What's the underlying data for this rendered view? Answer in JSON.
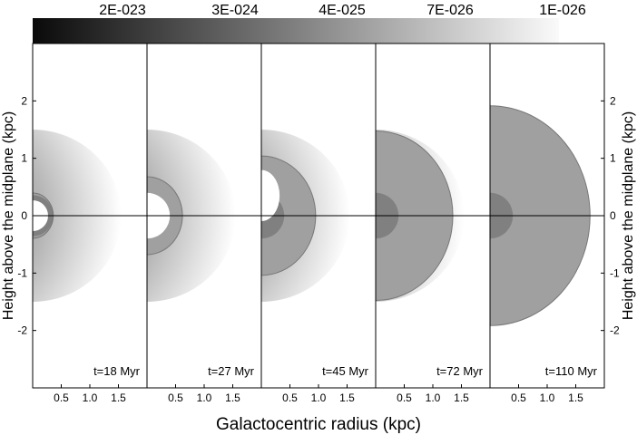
{
  "colorbar": {
    "tick_labels": [
      "2E-023",
      "3E-024",
      "4E-025",
      "7E-026",
      "1E-026"
    ]
  },
  "axes": {
    "xlabel": "Galactocentric radius (kpc)",
    "ylabel_left": "Height above the midplane (kpc)",
    "ylabel_right": "Height above the midplane (kpc)"
  },
  "chart_data": {
    "type": "heatmap",
    "x_ticks": [
      "0.5",
      "1.0",
      "1.5"
    ],
    "y_ticks": [
      "2",
      "1",
      "0",
      "-1",
      "-2"
    ],
    "xlim": [
      0,
      2
    ],
    "ylim": [
      -3,
      3
    ],
    "panels": [
      {
        "label": "t=18 Myr",
        "bubble_radius_kpc": 0.36,
        "inner_cavity_kpc": 0.27
      },
      {
        "label": "t=27 Myr",
        "bubble_radius_kpc": 0.62,
        "inner_cavity_kpc": 0.4
      },
      {
        "label": "t=45 Myr",
        "bubble_radius_kpc": 0.95,
        "inner_cavity_kpc": 0.32
      },
      {
        "label": "t=72 Myr",
        "bubble_radius_kpc": 1.35,
        "inner_cavity_kpc": 0.0
      },
      {
        "label": "t=110 Myr",
        "bubble_radius_kpc": 1.75,
        "inner_cavity_kpc": 0.0
      }
    ]
  }
}
